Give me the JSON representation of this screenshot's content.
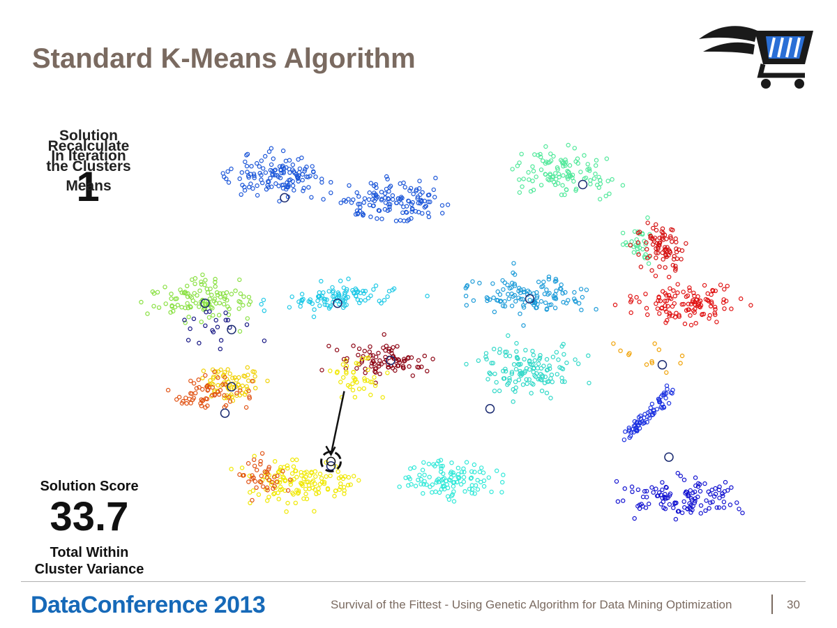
{
  "slide": {
    "title": "Standard K-Means Algorithm",
    "stage_labels": [
      "Solution",
      "Recalculate",
      "In Iteration",
      "the Clusters",
      "Means"
    ],
    "iteration": "1",
    "score_label": "Solution Score",
    "score_value": "33.7",
    "score_caption_1": "Total Within",
    "score_caption_2": "Cluster Variance",
    "footer_brand": "DataConference 2013",
    "footer_text": "Survival of the Fittest - Using Genetic Algorithm for Data Mining Optimization",
    "page_number": "30",
    "logo_icon": "shopping-cart-icon"
  },
  "colors": {
    "title": "#7a6a60",
    "brand": "#1669b8"
  },
  "chart_data": {
    "type": "scatter",
    "title": "",
    "xlabel": "",
    "ylabel": "",
    "xlim": [
      0,
      100
    ],
    "ylim": [
      0,
      100
    ],
    "grid": false,
    "clusters": [
      {
        "color": "#1a55d8",
        "cx": 23,
        "cy": 87,
        "sx": 5.5,
        "sy": 3.2,
        "n": 130,
        "angle": 0
      },
      {
        "color": "#1a55d8",
        "cx": 40,
        "cy": 81,
        "sx": 6.0,
        "sy": 3.2,
        "n": 130,
        "angle": 0
      },
      {
        "color": "#50e89a",
        "cx": 66,
        "cy": 88,
        "sx": 5.0,
        "sy": 3.5,
        "n": 110,
        "angle": 0
      },
      {
        "color": "#50e89a",
        "cx": 77,
        "cy": 72,
        "sx": 1.8,
        "sy": 3.0,
        "n": 30,
        "angle": 0
      },
      {
        "color": "#d41010",
        "cx": 81,
        "cy": 71,
        "sx": 3.0,
        "sy": 3.2,
        "n": 80,
        "angle": 0
      },
      {
        "color": "#88e040",
        "cx": 12,
        "cy": 59,
        "sx": 5.0,
        "sy": 3.3,
        "n": 110,
        "angle": 0
      },
      {
        "color": "#1cc8e6",
        "cx": 32,
        "cy": 59,
        "sx": 6.0,
        "sy": 2.2,
        "n": 100,
        "angle": 12
      },
      {
        "color": "#1a9ad8",
        "cx": 61,
        "cy": 60,
        "sx": 6.0,
        "sy": 3.3,
        "n": 120,
        "angle": 0
      },
      {
        "color": "#e01010",
        "cx": 85,
        "cy": 58,
        "sx": 6.0,
        "sy": 3.3,
        "n": 120,
        "angle": 0
      },
      {
        "color": "#f0d000",
        "cx": 16,
        "cy": 40,
        "sx": 3.5,
        "sy": 3.0,
        "n": 70,
        "angle": 0
      },
      {
        "color": "#e05010",
        "cx": 13,
        "cy": 37,
        "sx": 3.5,
        "sy": 3.0,
        "n": 60,
        "angle": 0
      },
      {
        "color": "#8b0010",
        "cx": 39,
        "cy": 45,
        "sx": 5.0,
        "sy": 2.6,
        "n": 90,
        "angle": 0
      },
      {
        "color": "#f0e800",
        "cx": 35,
        "cy": 41,
        "sx": 2.5,
        "sy": 3.0,
        "n": 40,
        "angle": 0
      },
      {
        "color": "#30d8c8",
        "cx": 61,
        "cy": 43,
        "sx": 5.5,
        "sy": 3.8,
        "n": 130,
        "angle": 0
      },
      {
        "color": "#1a30e0",
        "cx": 79,
        "cy": 33,
        "sx": 6.5,
        "sy": 0.8,
        "n": 70,
        "angle": 60
      },
      {
        "color": "#f0e800",
        "cx": 27,
        "cy": 17,
        "sx": 5.5,
        "sy": 3.5,
        "n": 130,
        "angle": 0
      },
      {
        "color": "#e05010",
        "cx": 21,
        "cy": 18,
        "sx": 2.5,
        "sy": 3.0,
        "n": 40,
        "angle": 0
      },
      {
        "color": "#30e8d8",
        "cx": 49,
        "cy": 18,
        "sx": 5.0,
        "sy": 3.0,
        "n": 110,
        "angle": 0
      },
      {
        "color": "#1010d0",
        "cx": 84,
        "cy": 14,
        "sx": 6.0,
        "sy": 3.2,
        "n": 120,
        "angle": 0
      },
      {
        "color": "#101080",
        "cx": 15,
        "cy": 52,
        "sx": 4.5,
        "sy": 4.0,
        "n": 20,
        "angle": 0
      },
      {
        "color": "#f0a000",
        "cx": 80,
        "cy": 46,
        "sx": 3.5,
        "sy": 2.5,
        "n": 12,
        "angle": 0
      }
    ],
    "centroids": [
      {
        "x": 24,
        "y": 82
      },
      {
        "x": 69,
        "y": 85
      },
      {
        "x": 12,
        "y": 58
      },
      {
        "x": 32,
        "y": 58
      },
      {
        "x": 61,
        "y": 59
      },
      {
        "x": 16,
        "y": 52
      },
      {
        "x": 16,
        "y": 39
      },
      {
        "x": 15,
        "y": 33
      },
      {
        "x": 40,
        "y": 45
      },
      {
        "x": 55,
        "y": 34
      },
      {
        "x": 81,
        "y": 44
      },
      {
        "x": 82,
        "y": 23
      },
      {
        "x": 31,
        "y": 21
      }
    ],
    "highlight": {
      "from": {
        "x": 33,
        "y": 38
      },
      "to": {
        "x": 31,
        "y": 22
      }
    }
  }
}
